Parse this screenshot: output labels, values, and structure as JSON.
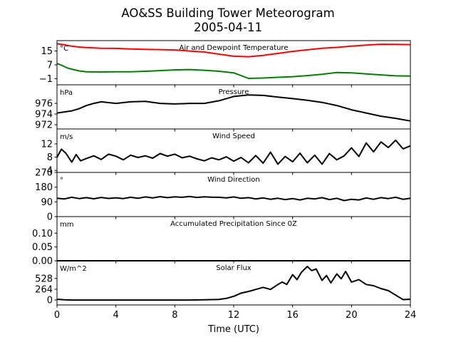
{
  "figure": {
    "title_line1": "AO&SS Building Tower Meteorogram",
    "title_line2": "2005-04-11",
    "xlabel": "Time (UTC)",
    "x_ticks": [
      0,
      4,
      8,
      12,
      16,
      20,
      24
    ],
    "x_tick_labels": [
      "0",
      "4",
      "8",
      "12",
      "16",
      "20",
      "24"
    ],
    "xlim": [
      0,
      24
    ]
  },
  "chart_data": [
    {
      "type": "line",
      "title": "Air and Dewpoint Temperature",
      "unit": "°C",
      "ylim": [
        -4.5,
        21
      ],
      "y_ticks": [
        15,
        7,
        -1
      ],
      "y_tick_labels": [
        "15",
        "7",
        "−1"
      ],
      "series": [
        {
          "color": "#ff0000",
          "x": [
            0,
            0.5,
            1,
            1.5,
            2,
            3,
            4,
            5,
            6,
            7,
            8,
            9,
            10,
            11,
            12,
            13,
            14,
            15,
            16,
            17,
            18,
            19,
            20,
            21,
            22,
            23,
            24
          ],
          "y": [
            19.2,
            18.6,
            17.8,
            17.3,
            17,
            16.6,
            16.5,
            16.2,
            16,
            15.8,
            15.6,
            15,
            14.4,
            13.2,
            12,
            11.7,
            12.5,
            13.6,
            14.8,
            15.7,
            16.6,
            17.1,
            17.8,
            18.4,
            18.9,
            18.8,
            18.7
          ]
        },
        {
          "color": "#008000",
          "x": [
            0,
            0.3,
            0.7,
            1,
            1.5,
            2,
            3,
            4,
            5,
            6,
            7,
            8,
            9,
            10,
            11,
            12,
            13,
            14,
            15,
            16,
            17,
            18,
            19,
            20,
            21,
            22,
            23,
            24
          ],
          "y": [
            7.8,
            6.8,
            5.2,
            4.5,
            3.5,
            3,
            2.9,
            3,
            3,
            3.3,
            3.7,
            4.1,
            4.3,
            3.9,
            3.3,
            2.4,
            -0.8,
            -0.6,
            -0.2,
            0.2,
            0.8,
            1.6,
            2.6,
            2.4,
            1.8,
            1.2,
            0.7,
            0.5
          ]
        }
      ]
    },
    {
      "type": "line",
      "title": "Pressure",
      "unit": "hPa",
      "ylim": [
        971.2,
        979.5
      ],
      "y_ticks": [
        976,
        974,
        972
      ],
      "y_tick_labels": [
        "976",
        "974",
        "972"
      ],
      "series": [
        {
          "color": "#000000",
          "x": [
            0,
            0.5,
            1,
            1.5,
            2,
            2.5,
            3,
            4,
            5,
            6,
            7,
            8,
            9,
            10,
            11,
            12,
            13,
            14,
            15,
            16,
            17,
            18,
            19,
            20,
            21,
            22,
            23,
            24
          ],
          "y": [
            974.2,
            974.4,
            974.6,
            975,
            975.6,
            976,
            976.3,
            976,
            976.3,
            976.4,
            976,
            975.9,
            976,
            976,
            976.5,
            977.3,
            977.6,
            977.5,
            977.2,
            976.9,
            976.6,
            976.2,
            975.6,
            974.8,
            974.2,
            973.6,
            973.2,
            972.7
          ]
        }
      ]
    },
    {
      "type": "line",
      "title": "Wind Speed",
      "unit": "m/s",
      "ylim": [
        3.4,
        16.5
      ],
      "y_ticks": [
        12,
        8,
        4
      ],
      "y_tick_labels": [
        "12",
        "8",
        "4"
      ],
      "series": [
        {
          "color": "#000000",
          "x": [
            0,
            0.3,
            0.6,
            1,
            1.3,
            1.6,
            2,
            2.5,
            3,
            3.5,
            4,
            4.5,
            5,
            5.5,
            6,
            6.5,
            7,
            7.5,
            8,
            8.5,
            9,
            9.5,
            10,
            10.5,
            11,
            11.5,
            12,
            12.5,
            13,
            13.5,
            14,
            14.5,
            15,
            15.5,
            16,
            16.5,
            17,
            17.5,
            18,
            18.5,
            19,
            19.5,
            20,
            20.5,
            21,
            21.5,
            22,
            22.5,
            23,
            23.5,
            24
          ],
          "y": [
            8,
            10.4,
            9.2,
            6.5,
            8.8,
            6.9,
            7.6,
            8.4,
            7.3,
            8.9,
            8.3,
            7.2,
            8.6,
            7.9,
            8.4,
            7.7,
            9.1,
            8.3,
            8.9,
            7.8,
            8.3,
            7.5,
            6.9,
            7.8,
            7.2,
            8.1,
            6.8,
            7.9,
            6.3,
            8.5,
            6.2,
            9.5,
            5.9,
            8.2,
            6.6,
            9.2,
            6.3,
            8.6,
            5.9,
            9.1,
            7.2,
            8.4,
            10.8,
            8.2,
            12.3,
            9.6,
            12.6,
            10.9,
            13.1,
            10.5,
            11.4
          ]
        }
      ]
    },
    {
      "type": "line",
      "title": "Wind Direction",
      "unit": "°",
      "ylim": [
        0,
        270
      ],
      "y_ticks": [
        270,
        180,
        90,
        0
      ],
      "y_tick_labels": [
        "270",
        "180",
        "90",
        "0"
      ],
      "series": [
        {
          "color": "#000000",
          "x": [
            0,
            0.5,
            1,
            1.5,
            2,
            2.5,
            3,
            3.5,
            4,
            4.5,
            5,
            5.5,
            6,
            6.5,
            7,
            7.5,
            8,
            8.5,
            9,
            9.5,
            10,
            10.5,
            11,
            11.5,
            12,
            12.5,
            13,
            13.5,
            14,
            14.5,
            15,
            15.5,
            16,
            16.5,
            17,
            17.5,
            18,
            18.5,
            19,
            19.5,
            20,
            20.5,
            21,
            21.5,
            22,
            22.5,
            23,
            23.5,
            24
          ],
          "y": [
            112,
            108,
            118,
            110,
            116,
            109,
            117,
            111,
            115,
            110,
            118,
            112,
            120,
            114,
            122,
            116,
            121,
            118,
            123,
            117,
            121,
            119,
            118,
            114,
            120,
            112,
            116,
            108,
            114,
            106,
            112,
            104,
            110,
            102,
            112,
            108,
            116,
            104,
            112,
            98,
            106,
            102,
            114,
            106,
            116,
            110,
            118,
            106,
            112
          ]
        }
      ]
    },
    {
      "type": "line",
      "title": "Accumulated Precipitation Since 0Z",
      "unit": "mm",
      "ylim": [
        0,
        0.16
      ],
      "y_ticks": [
        0.1,
        0.05,
        0
      ],
      "y_tick_labels": [
        "0.10",
        "0.05",
        "0.00"
      ],
      "series": [
        {
          "color": "#000000",
          "x": [
            0,
            24
          ],
          "y": [
            0,
            0
          ]
        }
      ]
    },
    {
      "type": "line",
      "title": "Solar Flux",
      "unit": "W/m^2",
      "ylim": [
        -120,
        960
      ],
      "y_ticks": [
        528,
        264,
        0
      ],
      "y_tick_labels": [
        "528",
        "264",
        "0"
      ],
      "series": [
        {
          "color": "#000000",
          "x": [
            0,
            0.5,
            1,
            2,
            4,
            6,
            8,
            9,
            10,
            11,
            11.5,
            12,
            12.5,
            13,
            13.5,
            14,
            14.5,
            15,
            15.3,
            15.6,
            16,
            16.3,
            16.6,
            17,
            17.3,
            17.6,
            18,
            18.3,
            18.6,
            19,
            19.3,
            19.6,
            20,
            20.5,
            21,
            21.5,
            22,
            22.5,
            23,
            23.5,
            24
          ],
          "y": [
            20,
            5,
            0,
            0,
            0,
            0,
            0,
            0,
            5,
            15,
            40,
            90,
            170,
            210,
            260,
            310,
            260,
            380,
            440,
            380,
            620,
            500,
            680,
            820,
            720,
            760,
            480,
            600,
            420,
            640,
            520,
            700,
            440,
            500,
            380,
            350,
            280,
            230,
            120,
            10,
            20
          ]
        }
      ]
    }
  ]
}
